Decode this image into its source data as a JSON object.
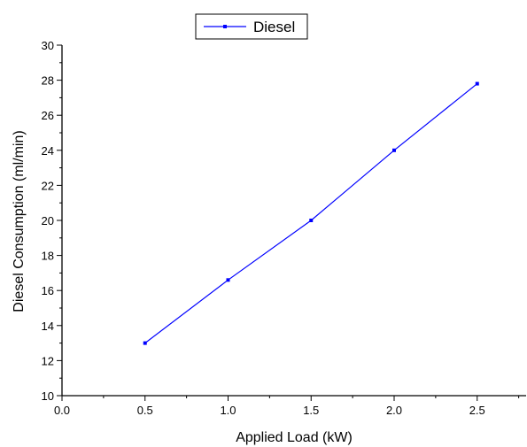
{
  "chart_data": {
    "type": "line",
    "title": "",
    "xlabel": "Applied Load (kW)",
    "ylabel": "Diesel Consumption (ml/min)",
    "xlim": [
      0.0,
      2.8
    ],
    "ylim": [
      10,
      30
    ],
    "x_ticks": [
      "0.0",
      "0.5",
      "1.0",
      "1.5",
      "2.0",
      "2.5"
    ],
    "y_ticks": [
      "10",
      "12",
      "14",
      "16",
      "18",
      "20",
      "22",
      "24",
      "26",
      "28",
      "30"
    ],
    "grid": false,
    "legend_position": "top-center",
    "series": [
      {
        "name": "Diesel",
        "color": "#0000ff",
        "marker": "square",
        "x": [
          0.5,
          1.0,
          1.5,
          2.0,
          2.5
        ],
        "y": [
          13.0,
          16.6,
          20.0,
          24.0,
          27.8
        ]
      }
    ]
  }
}
